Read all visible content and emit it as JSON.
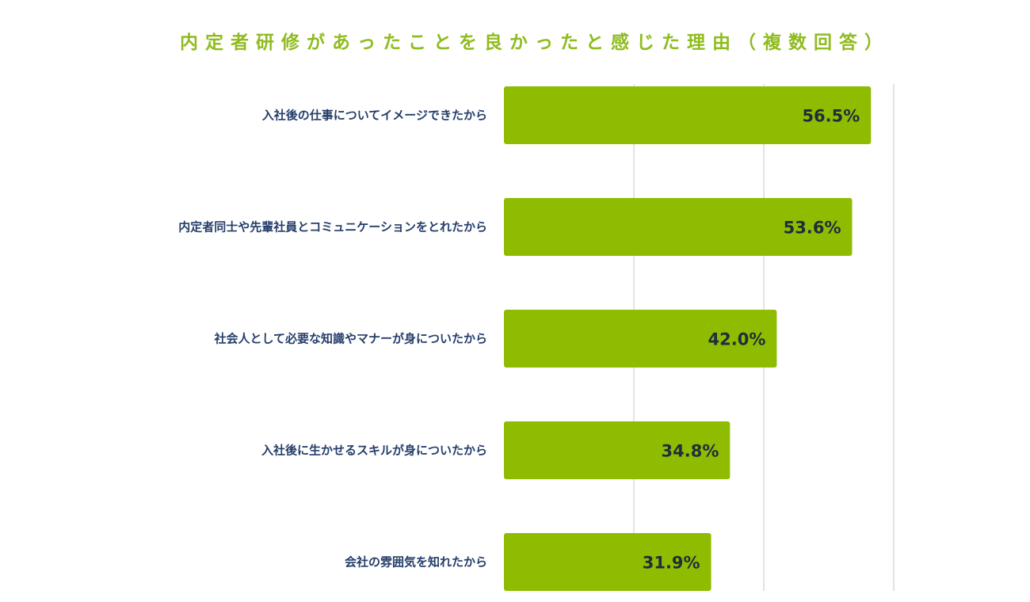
{
  "title": "内定者研修があったことを良かったと感じた理由（複数回答）",
  "colors": {
    "title": "#8fbc1e",
    "bar": "#8fbc00",
    "category_text": "#243e6a",
    "value_text": "#1f2d3d",
    "grid": "#dfe3ea"
  },
  "chart_data": {
    "type": "bar",
    "orientation": "horizontal",
    "categories": [
      "入社後の仕事についてイメージできたから",
      "内定者同士や先輩社員とコミュニケーションをとれたから",
      "社会人として必要な知識やマナーが身についたから",
      "入社後に生かせるスキルが身についたから",
      "会社の雰囲気を知れたから"
    ],
    "values": [
      56.5,
      53.6,
      42.0,
      34.8,
      31.9
    ],
    "value_labels": [
      "56.5%",
      "53.6%",
      "42.0%",
      "34.8%",
      "31.9%"
    ],
    "xlim": [
      0,
      60
    ],
    "grid": true,
    "title": "内定者研修があったことを良かったと感じた理由（複数回答）"
  }
}
